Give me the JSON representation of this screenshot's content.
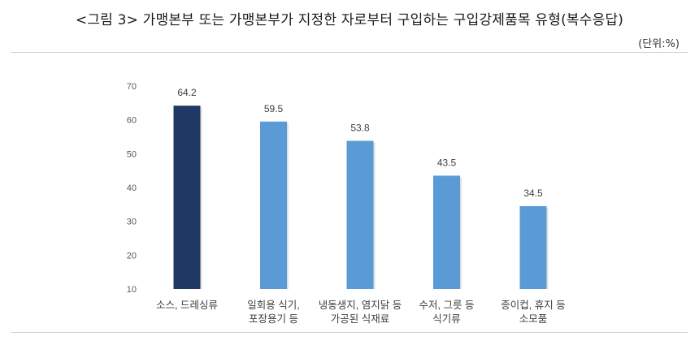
{
  "figure": {
    "title": "<그림 3> 가맹본부 또는 가맹본부가 지정한 자로부터 구입하는 구입강제품목 유형(복수응답)",
    "unit": "(단위:%)"
  },
  "chart_data": {
    "type": "bar",
    "categories": [
      [
        "소스, 드레싱류"
      ],
      [
        "일회용 식기,",
        "포장용기 등"
      ],
      [
        "냉동생지, 염지닭 등",
        "가공된 식재료"
      ],
      [
        "수저, 그릇 등",
        "식기류"
      ],
      [
        "종이컵, 휴지 등",
        "소모품"
      ]
    ],
    "values": [
      64.2,
      59.5,
      53.8,
      43.5,
      34.5
    ],
    "value_labels": [
      "64.2",
      "59.5",
      "53.8",
      "43.5",
      "34.5"
    ],
    "yticks": [
      "70",
      "60",
      "50",
      "40",
      "30",
      "20",
      "10"
    ],
    "ylim": [
      10,
      70
    ],
    "grid": false,
    "bar_colors": [
      "#203864",
      "#5b9bd5",
      "#5b9bd5",
      "#5b9bd5",
      "#5b9bd5"
    ],
    "xlabel": "",
    "ylabel": "",
    "title": ""
  }
}
